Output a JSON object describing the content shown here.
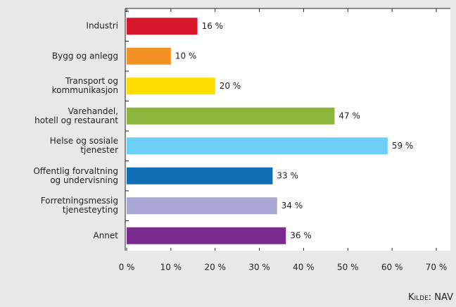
{
  "chart_data": {
    "type": "bar",
    "orientation": "horizontal",
    "categories": [
      "Industri",
      "Bygg og anlegg",
      "Transport og\nkommunikasjon",
      "Varehandel,\nhotell og restaurant",
      "Helse og sosiale\ntjenester",
      "Offentlig forvaltning\nog undervisning",
      "Forretningsmessig\ntjenesteyting",
      "Annet"
    ],
    "values": [
      16,
      10,
      20,
      47,
      59,
      33,
      34,
      36
    ],
    "value_labels": [
      "16 %",
      "10 %",
      "20 %",
      "47 %",
      "59 %",
      "33 %",
      "34 %",
      "36 %"
    ],
    "colors": [
      "#d7182a",
      "#f39325",
      "#ffdd00",
      "#8db53c",
      "#6dcff6",
      "#0f6eb4",
      "#aaa7d4",
      "#7b2a8f"
    ],
    "xlim": [
      0,
      70
    ],
    "xticks": [
      {
        "value": 0,
        "label": "0 %"
      },
      {
        "value": 10,
        "label": "10 %"
      },
      {
        "value": 20,
        "label": "20 %"
      },
      {
        "value": 30,
        "label": "30 %"
      },
      {
        "value": 40,
        "label": "40 %"
      },
      {
        "value": 50,
        "label": "50 %"
      },
      {
        "value": 60,
        "label": "60 %"
      },
      {
        "value": 70,
        "label": "70 %"
      }
    ],
    "source": "Kilde: NAV"
  }
}
